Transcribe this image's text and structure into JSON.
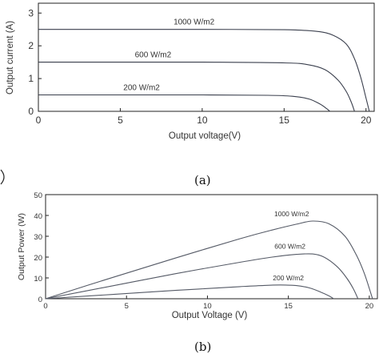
{
  "chart_data": [
    {
      "type": "line",
      "panel_label": "(a)",
      "xlabel": "Output voltage(V)",
      "ylabel": "Output current (A)",
      "xlim": [
        0,
        20.5
      ],
      "ylim": [
        0,
        3.3
      ],
      "xticks": [
        "0",
        "5",
        "10",
        "15",
        "20"
      ],
      "yticks": [
        "0",
        "1",
        "2",
        "3"
      ],
      "series": [
        {
          "name": "1000 W/m2",
          "x": [
            0,
            5,
            10,
            15,
            17,
            18,
            18.8,
            19.3,
            19.7,
            20.0,
            20.2
          ],
          "y": [
            2.5,
            2.5,
            2.5,
            2.49,
            2.44,
            2.32,
            2.05,
            1.6,
            1.0,
            0.4,
            0
          ]
        },
        {
          "name": "600 W/m2",
          "x": [
            0,
            5,
            10,
            15,
            16.5,
            17.5,
            18.3,
            18.8,
            19.1,
            19.3
          ],
          "y": [
            1.5,
            1.5,
            1.5,
            1.48,
            1.42,
            1.27,
            0.95,
            0.6,
            0.28,
            0
          ]
        },
        {
          "name": "200 W/m2",
          "x": [
            0,
            5,
            10,
            14,
            15.5,
            16.5,
            17.2,
            17.6,
            17.8
          ],
          "y": [
            0.5,
            0.5,
            0.5,
            0.49,
            0.46,
            0.38,
            0.22,
            0.08,
            0
          ]
        }
      ]
    },
    {
      "type": "line",
      "panel_label": "(b)",
      "xlabel": "Output Voltage (V)",
      "ylabel": "Output Power (W)",
      "xlim": [
        0,
        20.5
      ],
      "ylim": [
        0,
        50
      ],
      "xticks": [
        "0",
        "5",
        "10",
        "15",
        "20"
      ],
      "yticks": [
        "0",
        "10",
        "20",
        "30",
        "40",
        "50"
      ],
      "series": [
        {
          "name": "1000 W/m2",
          "x": [
            0,
            4,
            8,
            12,
            14,
            15.5,
            16.5,
            17.5,
            18.5,
            19.2,
            19.7,
            20.2
          ],
          "y": [
            0,
            9.9,
            19.5,
            28.8,
            33,
            35.8,
            37.3,
            36,
            30,
            21,
            12,
            0
          ]
        },
        {
          "name": "600 W/m2",
          "x": [
            0,
            4,
            8,
            12,
            14,
            15.5,
            16.5,
            17.2,
            18,
            18.6,
            19,
            19.3
          ],
          "y": [
            0,
            6,
            12,
            17.5,
            20,
            21.3,
            21.5,
            20,
            15.5,
            10,
            5,
            0
          ]
        },
        {
          "name": "200 W/m2",
          "x": [
            0,
            4,
            8,
            12,
            13.5,
            14.5,
            15.5,
            16.3,
            17,
            17.5,
            17.8
          ],
          "y": [
            0,
            2,
            4,
            5.8,
            6.4,
            6.6,
            6.3,
            5.2,
            3.2,
            1.4,
            0
          ]
        }
      ]
    }
  ]
}
